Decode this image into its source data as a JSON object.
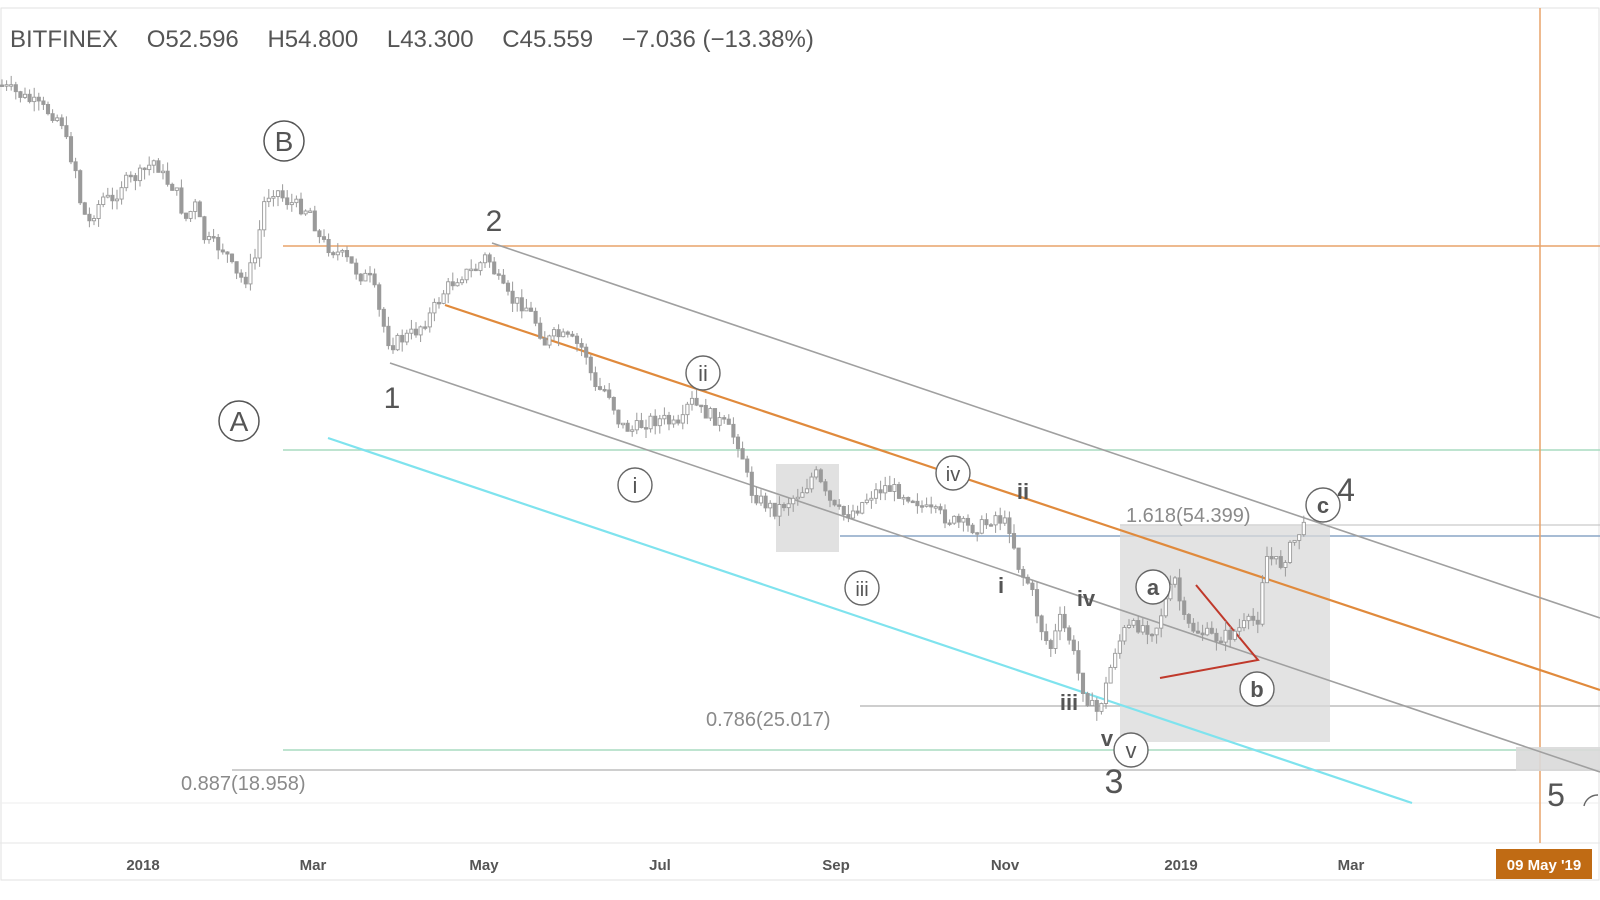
{
  "header": {
    "exchange": "BITFINEX",
    "open": "O52.596",
    "high": "H54.800",
    "low": "L43.300",
    "close": "C45.559",
    "change": "−7.036 (−13.38%)"
  },
  "colors": {
    "candle": "#9a9a9a",
    "orange": "#e08a3c",
    "channel": "#9e9e9e",
    "cyan": "#7fe3ee",
    "green": "#a8dcc0",
    "triangle": "#c0392b",
    "box": "#d9d9d9",
    "steel": "#7f9dbf"
  },
  "chart_data": {
    "type": "candlestick",
    "x_ticks": [
      "2018",
      "Mar",
      "May",
      "Jul",
      "Sep",
      "Nov",
      "2019",
      "Mar"
    ],
    "crosshair_label": "09 May '19",
    "fib_labels": {
      "ext": "1.618(54.399)",
      "r786": "0.786(25.017)",
      "r887": "0.887(18.958)"
    },
    "wave_labels": {
      "A": "A",
      "B": "B",
      "one": "1",
      "two": "2",
      "three": "3",
      "four": "4",
      "five": "5",
      "i_c": "i",
      "ii_c": "ii",
      "iii_c": "iii",
      "iv_c": "iv",
      "v_c": "v",
      "i_p": "i",
      "ii_p": "ii",
      "iii_p": "iii",
      "iv_p": "iv",
      "v_p": "v",
      "a": "a",
      "b": "b",
      "c": "c"
    },
    "waypoints": [
      [
        0,
        85
      ],
      [
        20,
        95
      ],
      [
        40,
        107
      ],
      [
        55,
        115
      ],
      [
        62,
        122
      ],
      [
        68,
        150
      ],
      [
        75,
        165
      ],
      [
        80,
        200
      ],
      [
        88,
        225
      ],
      [
        95,
        210
      ],
      [
        105,
        195
      ],
      [
        112,
        205
      ],
      [
        120,
        185
      ],
      [
        140,
        175
      ],
      [
        155,
        160
      ],
      [
        165,
        180
      ],
      [
        175,
        188
      ],
      [
        185,
        220
      ],
      [
        195,
        205
      ],
      [
        205,
        240
      ],
      [
        215,
        245
      ],
      [
        225,
        250
      ],
      [
        235,
        275
      ],
      [
        245,
        280
      ],
      [
        255,
        258
      ],
      [
        265,
        198
      ],
      [
        275,
        188
      ],
      [
        285,
        200
      ],
      [
        295,
        205
      ],
      [
        310,
        210
      ],
      [
        320,
        240
      ],
      [
        330,
        248
      ],
      [
        345,
        258
      ],
      [
        360,
        275
      ],
      [
        372,
        280
      ],
      [
        380,
        315
      ],
      [
        390,
        345
      ],
      [
        400,
        340
      ],
      [
        415,
        332
      ],
      [
        430,
        315
      ],
      [
        445,
        290
      ],
      [
        460,
        275
      ],
      [
        475,
        270
      ],
      [
        487,
        255
      ],
      [
        500,
        285
      ],
      [
        510,
        300
      ],
      [
        525,
        305
      ],
      [
        535,
        320
      ],
      [
        545,
        343
      ],
      [
        555,
        335
      ],
      [
        570,
        340
      ],
      [
        585,
        350
      ],
      [
        595,
        390
      ],
      [
        608,
        390
      ],
      [
        620,
        425
      ],
      [
        632,
        430
      ],
      [
        650,
        420
      ],
      [
        665,
        420
      ],
      [
        680,
        430
      ],
      [
        690,
        400
      ],
      [
        700,
        410
      ],
      [
        710,
        415
      ],
      [
        725,
        425
      ],
      [
        740,
        445
      ],
      [
        750,
        490
      ],
      [
        760,
        500
      ],
      [
        775,
        510
      ],
      [
        790,
        500
      ],
      [
        805,
        488
      ],
      [
        815,
        472
      ],
      [
        825,
        495
      ],
      [
        835,
        510
      ],
      [
        845,
        515
      ],
      [
        855,
        510
      ],
      [
        870,
        495
      ],
      [
        885,
        487
      ],
      [
        900,
        492
      ],
      [
        915,
        498
      ],
      [
        925,
        510
      ],
      [
        940,
        515
      ],
      [
        955,
        522
      ],
      [
        970,
        528
      ],
      [
        985,
        525
      ],
      [
        995,
        515
      ],
      [
        1010,
        528
      ],
      [
        1020,
        572
      ],
      [
        1030,
        585
      ],
      [
        1040,
        625
      ],
      [
        1050,
        650
      ],
      [
        1060,
        620
      ],
      [
        1070,
        640
      ],
      [
        1080,
        680
      ],
      [
        1090,
        705
      ],
      [
        1097,
        712
      ],
      [
        1105,
        690
      ],
      [
        1115,
        650
      ],
      [
        1125,
        630
      ],
      [
        1140,
        625
      ],
      [
        1155,
        630
      ],
      [
        1168,
        595
      ],
      [
        1175,
        580
      ],
      [
        1185,
        625
      ],
      [
        1200,
        632
      ],
      [
        1215,
        638
      ],
      [
        1230,
        635
      ],
      [
        1245,
        625
      ],
      [
        1258,
        618
      ],
      [
        1265,
        555
      ],
      [
        1280,
        565
      ],
      [
        1292,
        545
      ],
      [
        1303,
        525
      ],
      [
        1308,
        548
      ]
    ]
  }
}
